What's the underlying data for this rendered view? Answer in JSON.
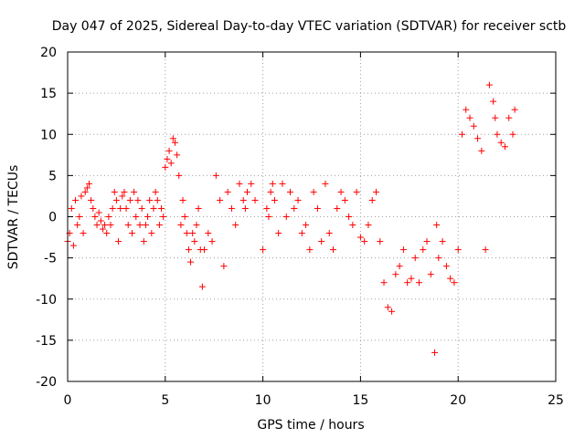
{
  "chart_data": {
    "type": "scatter",
    "title": "Day 047 of 2025, Sidereal Day-to-day VTEC variation (SDTVAR) for receiver sctb",
    "xlabel": "GPS time / hours",
    "ylabel": "SDTVAR / TECUs",
    "xlim": [
      0,
      25
    ],
    "ylim": [
      -20,
      20
    ],
    "xticks": [
      0,
      5,
      10,
      15,
      20,
      25
    ],
    "yticks": [
      -20,
      -15,
      -10,
      -5,
      0,
      5,
      10,
      15,
      20
    ],
    "xtick_labels": [
      "0",
      "5",
      "10",
      "15",
      "20",
      "25"
    ],
    "ytick_labels": [
      "-20",
      "-15",
      "-10",
      "-5",
      "0",
      "5",
      "10",
      "15",
      "20"
    ],
    "grid": true,
    "marker": "plus",
    "color": "#ff0000",
    "series": [
      {
        "name": "SDTVAR",
        "x": [
          0.0,
          0.1,
          0.2,
          0.3,
          0.4,
          0.5,
          0.6,
          0.7,
          0.8,
          0.9,
          1.0,
          1.1,
          1.2,
          1.3,
          1.4,
          1.5,
          1.6,
          1.7,
          1.8,
          1.9,
          2.0,
          2.1,
          2.2,
          2.3,
          2.4,
          2.5,
          2.6,
          2.7,
          2.8,
          2.9,
          3.0,
          3.1,
          3.2,
          3.3,
          3.4,
          3.5,
          3.6,
          3.7,
          3.8,
          3.9,
          4.0,
          4.1,
          4.2,
          4.3,
          4.4,
          4.5,
          4.6,
          4.7,
          4.8,
          4.9,
          5.0,
          5.1,
          5.2,
          5.3,
          5.4,
          5.5,
          5.6,
          5.7,
          5.8,
          5.9,
          6.0,
          6.1,
          6.2,
          6.3,
          6.4,
          6.5,
          6.6,
          6.7,
          6.8,
          6.9,
          7.0,
          7.2,
          7.4,
          7.6,
          7.8,
          8.0,
          8.2,
          8.4,
          8.6,
          8.8,
          9.0,
          9.1,
          9.2,
          9.4,
          9.6,
          10.0,
          10.2,
          10.3,
          10.4,
          10.5,
          10.6,
          10.8,
          11.0,
          11.2,
          11.4,
          11.6,
          11.8,
          12.0,
          12.2,
          12.4,
          12.6,
          12.8,
          13.0,
          13.2,
          13.4,
          13.6,
          13.8,
          14.0,
          14.2,
          14.4,
          14.6,
          14.8,
          15.0,
          15.2,
          15.4,
          15.6,
          15.8,
          16.0,
          16.2,
          16.4,
          16.6,
          16.8,
          17.0,
          17.2,
          17.4,
          17.6,
          17.8,
          18.0,
          18.2,
          18.4,
          18.6,
          18.8,
          18.9,
          19.0,
          19.2,
          19.4,
          19.6,
          19.8,
          20.0,
          20.2,
          20.4,
          20.6,
          20.8,
          21.0,
          21.2,
          21.4,
          21.6,
          21.8,
          21.9,
          22.0,
          22.2,
          22.4,
          22.6,
          22.8,
          22.9
        ],
        "y": [
          -3.0,
          -2.0,
          1.0,
          -3.5,
          2.0,
          -1.0,
          0.0,
          2.5,
          -2.0,
          3.0,
          3.5,
          4.0,
          2.0,
          1.0,
          0.0,
          -1.0,
          0.5,
          -0.5,
          -1.5,
          -1.0,
          -2.0,
          0.0,
          -1.0,
          1.0,
          3.0,
          2.0,
          -3.0,
          1.0,
          2.5,
          3.0,
          1.0,
          -1.0,
          2.0,
          -2.0,
          3.0,
          0.0,
          2.0,
          -1.0,
          1.0,
          -3.0,
          -1.0,
          0.0,
          2.0,
          -2.0,
          1.0,
          3.0,
          2.0,
          -1.0,
          1.0,
          0.0,
          6.0,
          7.0,
          8.0,
          6.5,
          9.5,
          9.0,
          7.5,
          5.0,
          -1.0,
          2.0,
          0.0,
          -2.0,
          -4.0,
          -5.5,
          -2.0,
          -3.0,
          -1.0,
          1.0,
          -4.0,
          -8.5,
          -4.0,
          -2.0,
          -3.0,
          5.0,
          2.0,
          -6.0,
          3.0,
          1.0,
          -1.0,
          4.0,
          2.0,
          1.0,
          3.0,
          4.0,
          2.0,
          -4.0,
          1.0,
          0.0,
          3.0,
          4.0,
          2.0,
          -2.0,
          4.0,
          0.0,
          3.0,
          1.0,
          2.0,
          -2.0,
          -1.0,
          -4.0,
          3.0,
          1.0,
          -3.0,
          4.0,
          -2.0,
          -4.0,
          1.0,
          3.0,
          2.0,
          0.0,
          -1.0,
          3.0,
          -2.5,
          -3.0,
          -1.0,
          2.0,
          3.0,
          -3.0,
          -8.0,
          -11.0,
          -11.5,
          -7.0,
          -6.0,
          -4.0,
          -8.0,
          -7.5,
          -5.0,
          -8.0,
          -4.0,
          -3.0,
          -7.0,
          -16.5,
          -1.0,
          -5.0,
          -3.0,
          -6.0,
          -7.5,
          -8.0,
          -4.0,
          10.0,
          13.0,
          12.0,
          11.0,
          9.5,
          8.0,
          -4.0,
          16.0,
          14.0,
          12.0,
          10.0,
          9.0,
          8.5,
          12.0,
          10.0,
          13.0
        ]
      }
    ]
  }
}
